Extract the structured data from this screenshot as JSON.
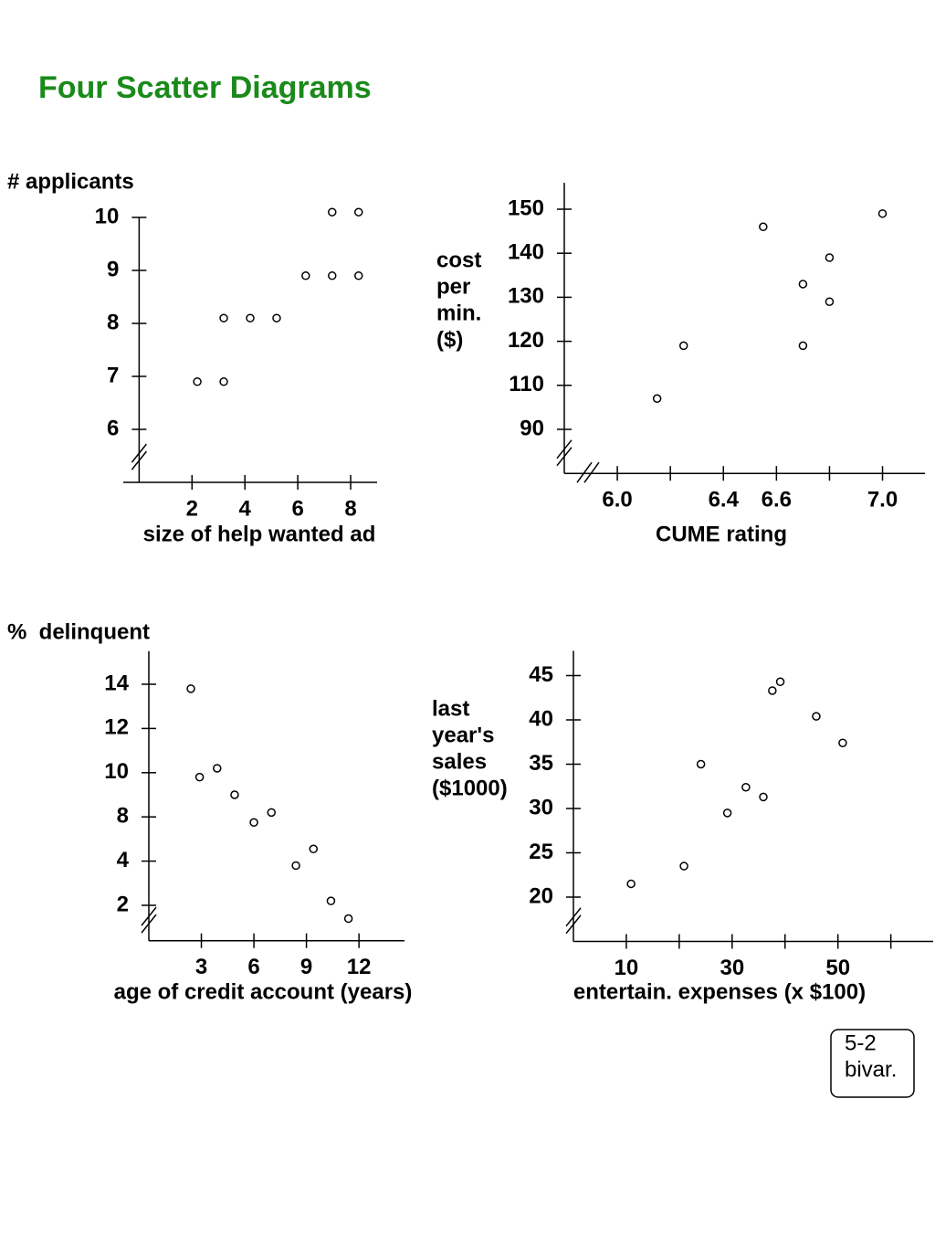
{
  "title": "Four Scatter Diagrams",
  "tag": [
    "5-2",
    "bivar."
  ],
  "chart_data": [
    {
      "type": "scatter",
      "ylabel": [
        "# applicants"
      ],
      "xlabel": "size of help wanted ad",
      "color": "#000000",
      "x": [
        2.2,
        3.2,
        3.2,
        4.2,
        5.2,
        6.3,
        7.3,
        8.3,
        7.3,
        8.3
      ],
      "values": [
        6.9,
        6.9,
        8.1,
        8.1,
        8.1,
        8.9,
        8.9,
        8.9,
        10.1,
        10.1
      ],
      "xlim": [
        -0.6,
        9.0
      ],
      "xticks": [
        2,
        4,
        6,
        8
      ],
      "ylim": [
        5,
        10
      ],
      "yticks": [
        6,
        7,
        8,
        9,
        10
      ]
    },
    {
      "type": "scatter",
      "ylabel": [
        "cost",
        "per",
        "min.",
        "($)"
      ],
      "xlabel": "CUME rating",
      "color": "#000000",
      "x": [
        6.15,
        6.25,
        6.55,
        6.7,
        6.7,
        6.8,
        6.8,
        7.0
      ],
      "values": [
        104,
        119,
        146,
        133,
        119,
        139,
        129,
        149
      ],
      "xlim": [
        5.8,
        7.16
      ],
      "xticks": [
        {
          "value": 6.0,
          "label": "6.0"
        },
        6.4,
        6.6,
        {
          "value": 7.0,
          "label": "7.0"
        }
      ],
      "xticks_minor": [
        6.2,
        6.8
      ],
      "ylim": [
        70,
        156
      ],
      "yticks": [
        90,
        110,
        120,
        130,
        140,
        150
      ]
    },
    {
      "type": "scatter",
      "ylabel": [
        "%  delinquent"
      ],
      "xlabel": "age of credit account (years)",
      "color": "#000000",
      "x": [
        2.4,
        2.9,
        3.9,
        4.9,
        6.0,
        7.0,
        8.4,
        9.4,
        10.4,
        11.4
      ],
      "values": [
        13.8,
        9.8,
        10.2,
        9.0,
        7.5,
        8.2,
        3.8,
        5.1,
        2.2,
        1.4
      ],
      "xlim": [
        0,
        14.6
      ],
      "xticks": [
        3,
        6,
        9,
        12
      ],
      "ylim": [
        0.4,
        15.5
      ],
      "yticks": [
        2,
        4,
        8,
        10,
        12,
        14
      ]
    },
    {
      "type": "scatter",
      "ylabel": [
        "last",
        "year's",
        "sales",
        "($1000)"
      ],
      "xlabel": "entertain. expenses (x $100)",
      "color": "#000000",
      "x": [
        10.9,
        20.9,
        24.1,
        29.1,
        32.6,
        35.9,
        37.6,
        39.1,
        45.9,
        50.9
      ],
      "values": [
        21.5,
        23.5,
        35,
        29.5,
        32.4,
        31.3,
        43.3,
        44.3,
        40.4,
        37.4
      ],
      "xlim": [
        0,
        68
      ],
      "xticks": [
        10,
        30,
        50
      ],
      "xticks_minor": [
        20,
        40,
        60
      ],
      "ylim": [
        15,
        47.8
      ],
      "yticks": [
        20,
        25,
        30,
        35,
        40,
        45
      ]
    }
  ]
}
